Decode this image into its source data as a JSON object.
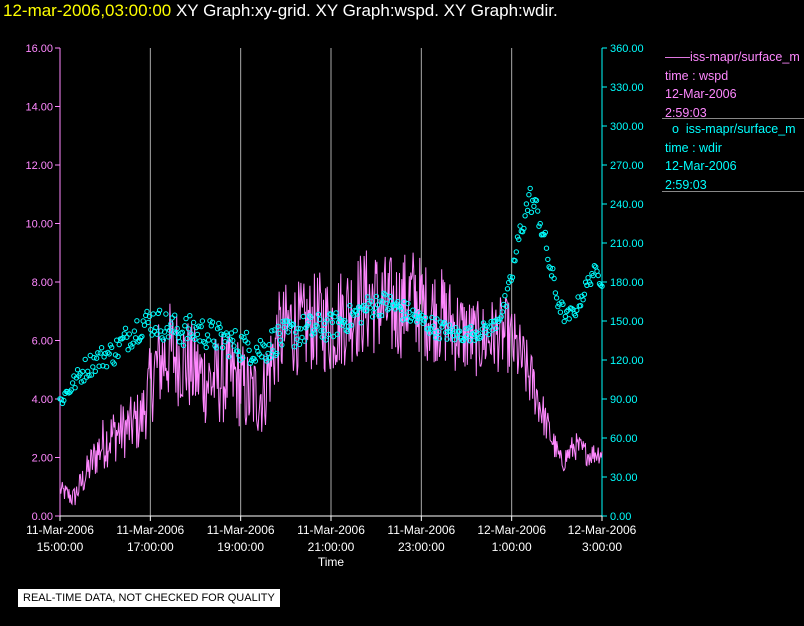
{
  "header": {
    "timestamp": "12-mar-2006,03:00:00",
    "graphs": "XY Graph:xy-grid.  XY Graph:wspd.  XY Graph:wdir."
  },
  "legend": {
    "wspd": {
      "series": "iss-mapr/surface_m",
      "desc": "time : wspd",
      "date": "12-Mar-2006",
      "time": "2:59:03"
    },
    "wdir": {
      "series": "iss-mapr/surface_m",
      "desc": "time : wdir",
      "date": "12-Mar-2006",
      "time": "2:59:03"
    }
  },
  "notice": "REAL-TIME DATA, NOT CHECKED FOR QUALITY",
  "colors": {
    "wspd": "#ff88ff",
    "wdir": "#00ffff",
    "grid": "#aaaaaa",
    "axis": "#ffffff"
  },
  "chart_data": {
    "type": "line",
    "xlabel": "Time",
    "x_range_hours": [
      0,
      12
    ],
    "x_ticks": [
      {
        "h": 0,
        "date": "11-Mar-2006",
        "time": "15:00:00"
      },
      {
        "h": 2,
        "date": "11-Mar-2006",
        "time": "17:00:00"
      },
      {
        "h": 4,
        "date": "11-Mar-2006",
        "time": "19:00:00"
      },
      {
        "h": 6,
        "date": "11-Mar-2006",
        "time": "21:00:00"
      },
      {
        "h": 8,
        "date": "11-Mar-2006",
        "time": "23:00:00"
      },
      {
        "h": 10,
        "date": "12-Mar-2006",
        "time": "1:00:00"
      },
      {
        "h": 12,
        "date": "12-Mar-2006",
        "time": "3:00:00"
      }
    ],
    "y_left": {
      "label": "wspd",
      "range": [
        0,
        16
      ],
      "ticks": [
        "0.00",
        "2.00",
        "4.00",
        "6.00",
        "8.00",
        "10.00",
        "12.00",
        "14.00",
        "16.00"
      ]
    },
    "y_right": {
      "label": "wdir",
      "range": [
        0,
        360
      ],
      "ticks": [
        "0.00",
        "30.00",
        "60.00",
        "90.00",
        "120.00",
        "150.00",
        "180.00",
        "210.00",
        "240.00",
        "270.00",
        "300.00",
        "330.00",
        "360.00"
      ]
    },
    "series": [
      {
        "name": "wspd",
        "style": "line",
        "axis": "left",
        "hours": [
          0,
          0.3,
          0.6,
          0.9,
          1.2,
          1.5,
          1.8,
          2.1,
          2.4,
          2.7,
          3.0,
          3.3,
          3.6,
          3.9,
          4.2,
          4.5,
          4.8,
          5.1,
          5.4,
          5.7,
          6.0,
          6.3,
          6.6,
          6.9,
          7.2,
          7.5,
          7.8,
          8.1,
          8.4,
          8.7,
          9.0,
          9.3,
          9.6,
          9.9,
          10.2,
          10.5,
          10.8,
          11.1,
          11.4,
          11.7,
          12.0
        ],
        "values": [
          0.9,
          0.6,
          1.5,
          2.4,
          2.8,
          3.0,
          3.3,
          5.0,
          5.6,
          5.4,
          4.9,
          4.6,
          4.7,
          4.7,
          4.1,
          4.2,
          6.0,
          6.5,
          6.4,
          6.7,
          6.5,
          6.9,
          7.2,
          7.4,
          7.1,
          7.1,
          7.5,
          7.0,
          6.9,
          6.5,
          6.2,
          6.0,
          6.2,
          6.2,
          5.4,
          4.4,
          3.0,
          1.8,
          2.4,
          2.1,
          2.2
        ],
        "noise": [
          0.3,
          0.4,
          0.6,
          0.9,
          1.0,
          1.0,
          1.1,
          1.6,
          1.8,
          1.7,
          1.6,
          1.6,
          1.6,
          1.6,
          1.5,
          1.5,
          1.6,
          1.7,
          1.6,
          1.7,
          1.8,
          1.8,
          1.9,
          1.9,
          1.9,
          1.8,
          1.8,
          1.7,
          1.7,
          1.6,
          1.4,
          1.3,
          1.3,
          1.3,
          1.2,
          1.0,
          0.6,
          0.4,
          0.5,
          0.4,
          0.4
        ]
      },
      {
        "name": "wdir",
        "style": "circles",
        "axis": "right",
        "hours": [
          0,
          0.3,
          0.6,
          0.9,
          1.2,
          1.5,
          1.8,
          2.1,
          2.4,
          2.7,
          3.0,
          3.3,
          3.6,
          3.9,
          4.2,
          4.5,
          4.8,
          5.1,
          5.4,
          5.7,
          6.0,
          6.3,
          6.6,
          6.9,
          7.2,
          7.5,
          7.8,
          8.1,
          8.4,
          8.7,
          9.0,
          9.3,
          9.6,
          9.9,
          10.2,
          10.4,
          10.6,
          10.8,
          11.0,
          11.2,
          11.4,
          11.6,
          11.8,
          12.0
        ],
        "values": [
          88,
          102,
          115,
          122,
          126,
          138,
          148,
          150,
          145,
          142,
          143,
          140,
          136,
          132,
          130,
          128,
          136,
          140,
          143,
          144,
          146,
          150,
          156,
          162,
          164,
          160,
          154,
          148,
          144,
          140,
          140,
          142,
          146,
          166,
          220,
          245,
          232,
          200,
          168,
          152,
          158,
          172,
          188,
          182
        ],
        "noise": [
          6,
          7,
          9,
          9,
          10,
          11,
          12,
          12,
          12,
          12,
          12,
          12,
          12,
          12,
          13,
          13,
          12,
          12,
          12,
          12,
          10,
          10,
          10,
          10,
          9,
          9,
          8,
          8,
          8,
          7,
          6,
          6,
          6,
          8,
          10,
          10,
          10,
          10,
          8,
          6,
          6,
          6,
          6,
          6
        ]
      }
    ]
  }
}
